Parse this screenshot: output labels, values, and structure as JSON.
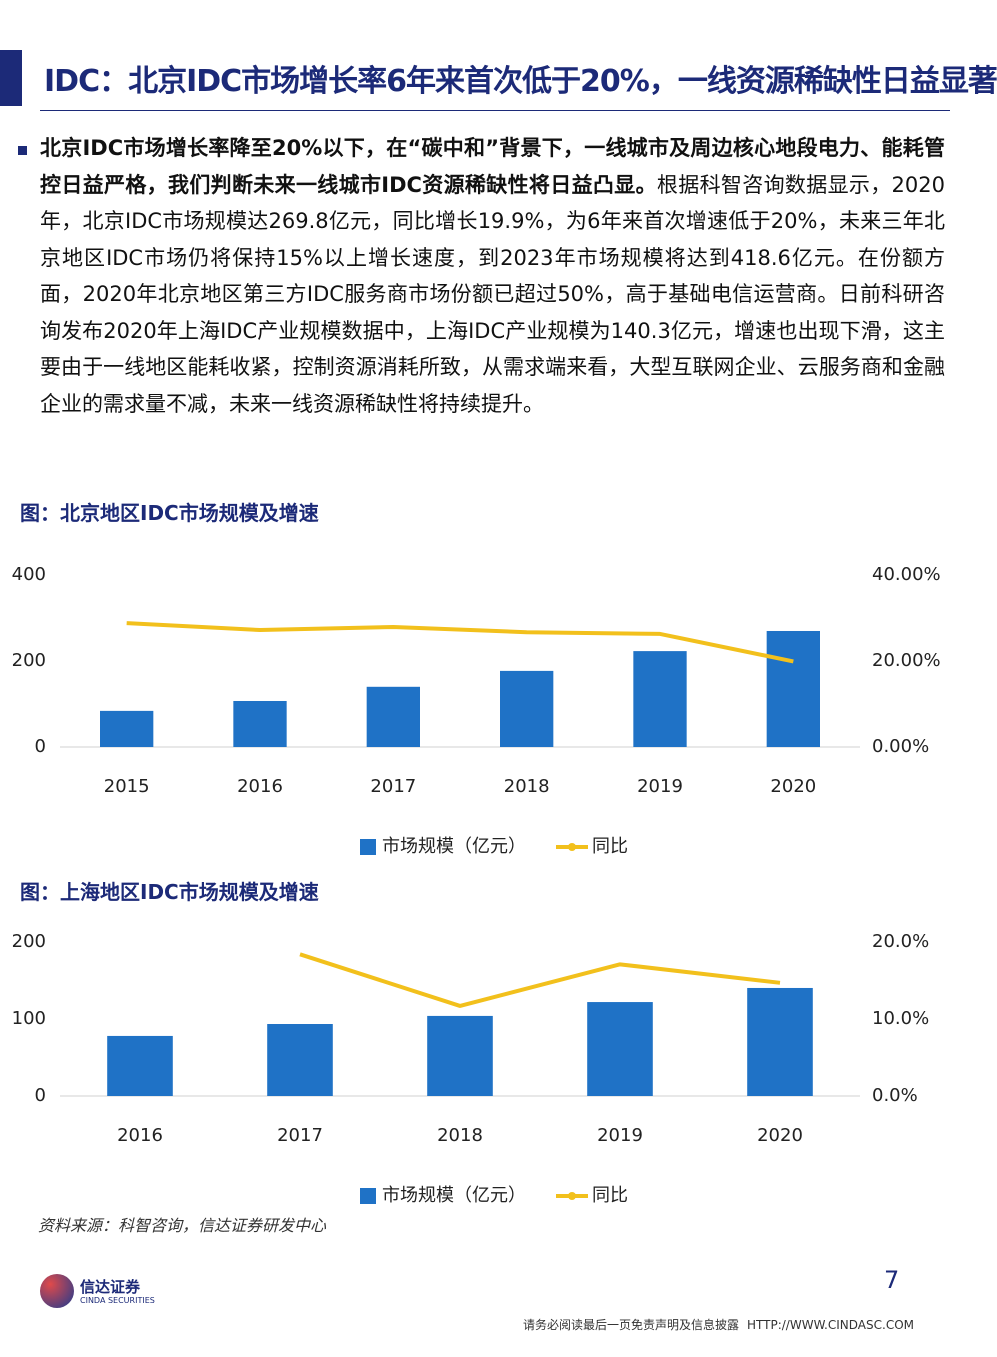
{
  "header": {
    "title": "IDC：北京IDC市场增长率6年来首次低于20%，一线资源稀缺性日益显著"
  },
  "body": {
    "bold_text": "北京IDC市场增长率降至20%以下，在“碳中和”背景下，一线城市及周边核心地段电力、能耗管控日益严格，我们判断未来一线城市IDC资源稀缺性将日益凸显。",
    "text": "根据科智咨询数据显示，2020年，北京IDC市场规模达269.8亿元，同比增长19.9%，为6年来首次增速低于20%，未来三年北京地区IDC市场仍将保持15%以上增长速度，到2023年市场规模将达到418.6亿元。在份额方面，2020年北京地区第三方IDC服务商市场份额已超过50%，高于基础电信运营商。日前科研咨询发布2020年上海IDC产业规模数据中，上海IDC产业规模为140.3亿元，增速也出现下滑，这主要由于一线地区能耗收紧，控制资源消耗所致，从需求端来看，大型互联网企业、云服务商和金融企业的需求量不减，未来一线资源稀缺性将持续提升。"
  },
  "chart_data": [
    {
      "type": "bar",
      "title": "图：北京地区IDC市场规模及增速",
      "categories": [
        "2015",
        "2016",
        "2017",
        "2018",
        "2019",
        "2020"
      ],
      "series": [
        {
          "name": "市场规模（亿元）",
          "color": "#1f72c6",
          "values": [
            84,
            107,
            140,
            177,
            223,
            269.8
          ]
        },
        {
          "name": "同比",
          "color": "#f2c01c",
          "type": "line",
          "axis": "y2",
          "values": [
            28.8,
            27.2,
            27.9,
            26.7,
            26.3,
            19.9
          ]
        }
      ],
      "ylim": [
        0,
        400
      ],
      "yticks": [
        0,
        200,
        400
      ],
      "y2lim": [
        0,
        40
      ],
      "y2ticks": [
        {
          "value": 0,
          "label": "0.00%"
        },
        {
          "value": 20,
          "label": "20.00%"
        },
        {
          "value": 40,
          "label": "40.00%"
        }
      ],
      "legend": "bottom"
    },
    {
      "type": "bar",
      "title": "图：上海地区IDC市场规模及增速",
      "categories": [
        "2016",
        "2017",
        "2018",
        "2019",
        "2020"
      ],
      "series": [
        {
          "name": "市场规模（亿元）",
          "color": "#1f72c6",
          "values": [
            78,
            93.5,
            104,
            122,
            140.3
          ]
        },
        {
          "name": "同比",
          "color": "#f2c01c",
          "type": "line",
          "axis": "y2",
          "values": [
            null,
            18.4,
            11.7,
            17.1,
            14.7
          ]
        }
      ],
      "ylim": [
        0,
        200
      ],
      "yticks": [
        0,
        100,
        200
      ],
      "y2lim": [
        0,
        20
      ],
      "y2ticks": [
        {
          "value": 0,
          "label": "0.0%"
        },
        {
          "value": 10,
          "label": "10.0%"
        },
        {
          "value": 20,
          "label": "20.0%"
        }
      ],
      "legend": "bottom"
    }
  ],
  "source": "资料来源：科智咨询，信达证券研发中心",
  "logo": {
    "name": "信达证券",
    "english": "CINDA SECURITIES"
  },
  "page_number": "7",
  "footer": {
    "disclaimer": "请务必阅读最后一页免责声明及信息披露",
    "url": "HTTP://WWW.CINDASC.COM"
  }
}
